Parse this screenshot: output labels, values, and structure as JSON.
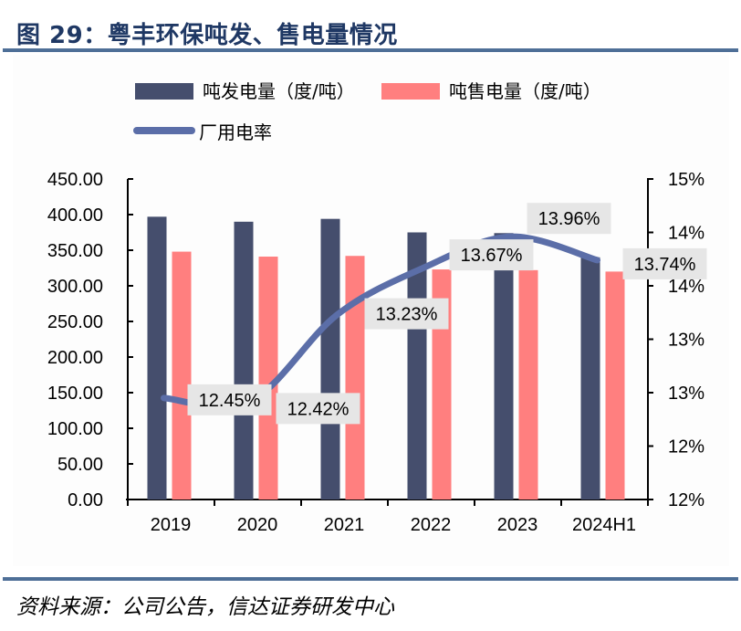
{
  "header": {
    "title": "图 29：粤丰环保吨发、售电量情况"
  },
  "footer": {
    "source": "资料来源：公司公告，信达证券研发中心"
  },
  "colors": {
    "generated": "#454e6d",
    "sold": "#ff7f7f",
    "rate_line": "#5b6ea8",
    "label_bg": "#e6e6e6",
    "rule": "#4e6f97",
    "title": "#1f3864"
  },
  "chart_data": {
    "type": "bar",
    "title": "粤丰环保吨发、售电量情况",
    "categories": [
      "2019",
      "2020",
      "2021",
      "2022",
      "2023",
      "2024H1"
    ],
    "series": [
      {
        "name": "吨发电量（度/吨）",
        "type": "bar",
        "axis": "left",
        "values": [
          397,
          390,
          394,
          375,
          374,
          340
        ]
      },
      {
        "name": "吨售电量（度/吨）",
        "type": "bar",
        "axis": "left",
        "values": [
          348,
          341,
          342,
          323,
          322,
          320
        ]
      },
      {
        "name": "厂用电率",
        "type": "line",
        "axis": "right",
        "values": [
          12.45,
          12.42,
          13.23,
          13.67,
          13.96,
          13.74
        ],
        "labels": [
          "12.45%",
          "12.42%",
          "13.23%",
          "13.67%",
          "13.96%",
          "13.74%"
        ]
      }
    ],
    "left_axis": {
      "ylim": [
        0,
        450
      ],
      "ticks": [
        0,
        50,
        100,
        150,
        200,
        250,
        300,
        350,
        400,
        450
      ],
      "tick_labels": [
        "0.00",
        "50.00",
        "100.00",
        "150.00",
        "200.00",
        "250.00",
        "300.00",
        "350.00",
        "400.00",
        "450.00"
      ]
    },
    "right_axis": {
      "ylim": [
        11.5,
        14.5
      ],
      "ticks": [
        11.5,
        12.0,
        12.5,
        13.0,
        13.5,
        14.0,
        14.5
      ],
      "tick_labels": [
        "12%",
        "12%",
        "13%",
        "13%",
        "14%",
        "14%",
        "15%"
      ]
    },
    "legend": {
      "placement": "top",
      "entries": [
        "吨发电量（度/吨）",
        "吨售电量（度/吨）",
        "厂用电率"
      ]
    },
    "grid": false,
    "xlabel": "",
    "ylabel": ""
  }
}
